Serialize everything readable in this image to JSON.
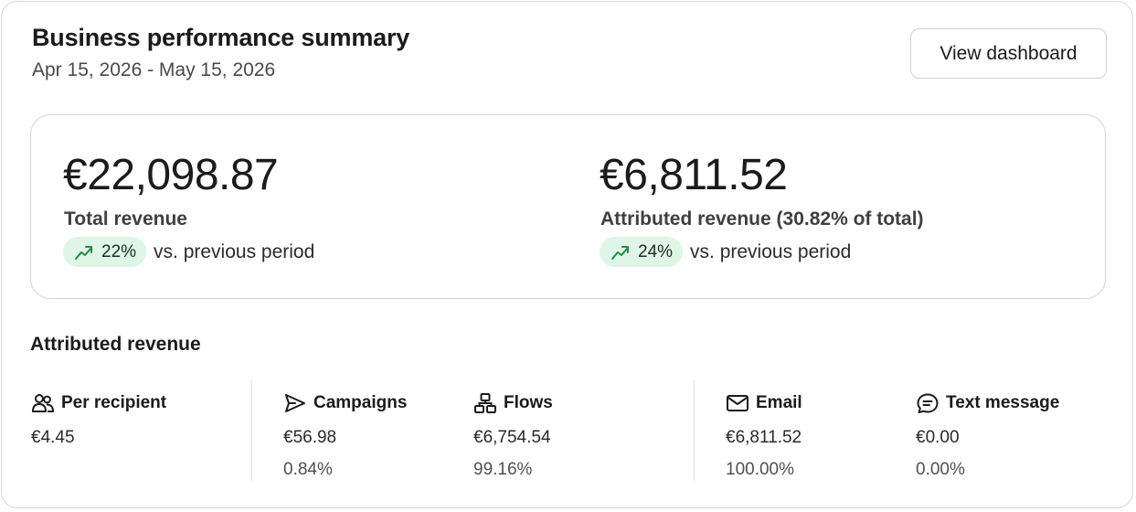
{
  "header": {
    "title": "Business performance summary",
    "date_range": "Apr 15, 2026 - May 15, 2026",
    "view_dashboard_label": "View dashboard"
  },
  "summary": {
    "total": {
      "amount": "€22,098.87",
      "label": "Total revenue",
      "change": "22%",
      "change_icon": "trend-up-icon",
      "comparison": "vs. previous period"
    },
    "attributed": {
      "amount": "€6,811.52",
      "label": "Attributed revenue (30.82% of total)",
      "change": "24%",
      "change_icon": "trend-up-icon",
      "comparison": "vs. previous period"
    }
  },
  "attributed_section": {
    "title": "Attributed revenue",
    "items": [
      {
        "label": "Per recipient",
        "icon": "users-icon",
        "value": "€4.45",
        "percent": ""
      },
      {
        "label": "Campaigns",
        "icon": "send-icon",
        "value": "€56.98",
        "percent": "0.84%"
      },
      {
        "label": "Flows",
        "icon": "flow-icon",
        "value": "€6,754.54",
        "percent": "99.16%"
      },
      {
        "label": "Email",
        "icon": "mail-icon",
        "value": "€6,811.52",
        "percent": "100.00%"
      },
      {
        "label": "Text message",
        "icon": "message-icon",
        "value": "€0.00",
        "percent": "0.00%"
      }
    ]
  },
  "colors": {
    "positive_pill_bg": "#dff5e6",
    "positive_icon": "#1f8a4c",
    "border": "#d6d6d6"
  }
}
